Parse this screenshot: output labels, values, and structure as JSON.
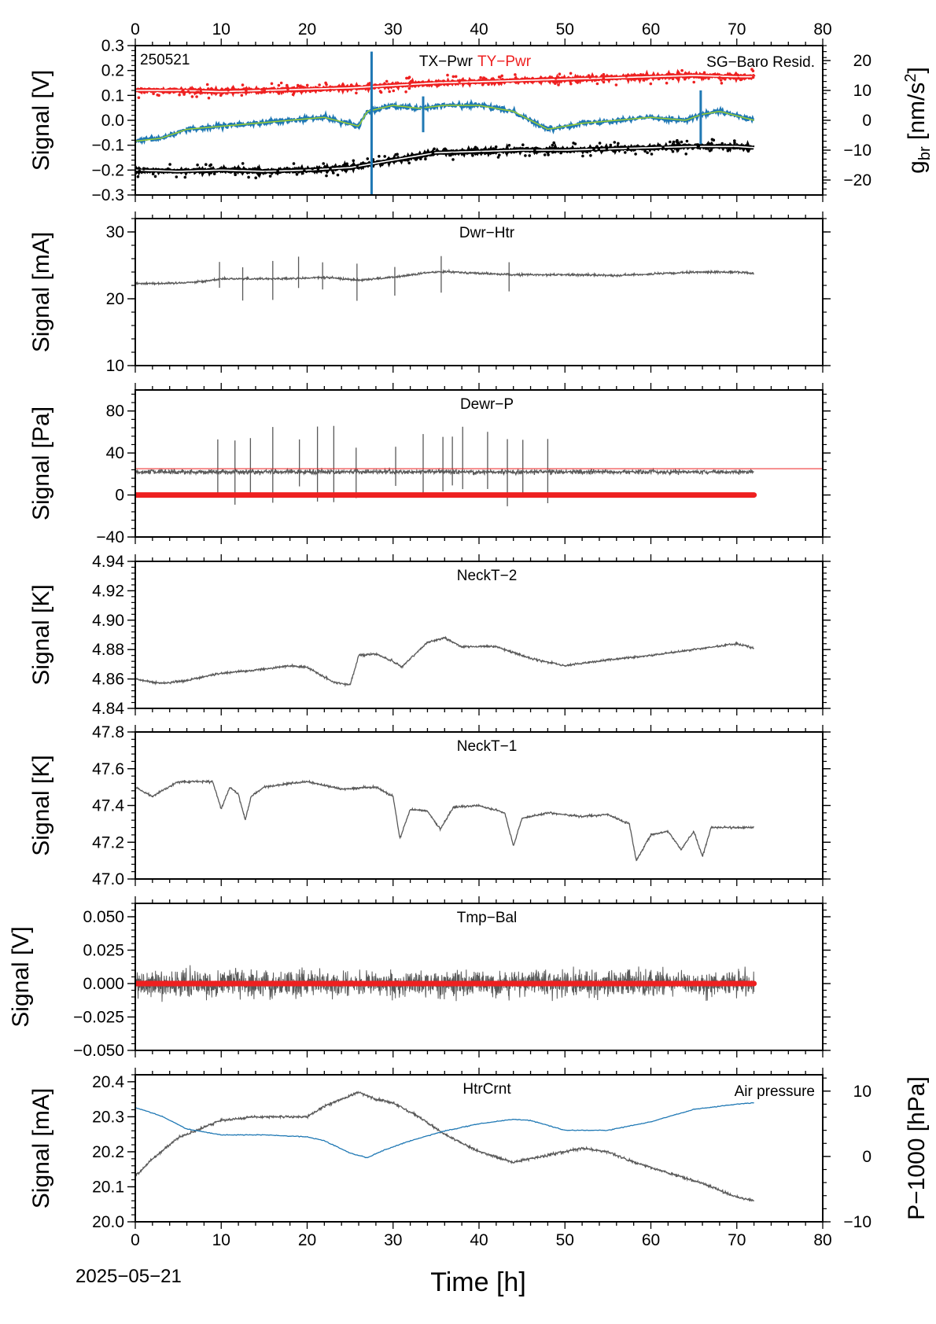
{
  "chart_data": [
    {
      "type": "line",
      "title": "TX−Pwr",
      "title2": "TY−Pwr",
      "annotation": "250521",
      "ylabel": "Signal [V]",
      "ylim": [
        -0.3,
        0.3
      ],
      "yticks": [
        0.3,
        0.2,
        0.1,
        0.0,
        -0.1,
        -0.2,
        -0.3
      ],
      "ytick_labels": [
        "0.3",
        "0.2",
        "0.1",
        "0.0",
        "−0.1",
        "−0.2",
        "−0.3"
      ],
      "right_axis": {
        "label_main": "g",
        "label_sub": "br",
        "label_unit": " [nm/s",
        "label_sup": "2",
        "label_end": "]",
        "ylim": [
          -25,
          25
        ],
        "yticks": [
          20,
          10,
          0,
          -10,
          -20
        ],
        "ytick_labels": [
          "20",
          "10",
          "0",
          "−10",
          "−20"
        ],
        "legend": "SG−Baro Resid.",
        "color": "#1f78b4"
      },
      "series": [
        {
          "name": "TY−Pwr",
          "color": "#ee2020",
          "x": [
            0,
            5,
            10,
            15,
            20,
            25,
            30,
            35,
            40,
            45,
            50,
            55,
            60,
            65,
            70,
            72
          ],
          "y": [
            0.12,
            0.12,
            0.115,
            0.12,
            0.125,
            0.13,
            0.14,
            0.15,
            0.155,
            0.16,
            0.165,
            0.17,
            0.175,
            0.18,
            0.175,
            0.175
          ]
        },
        {
          "name": "TX−Pwr",
          "color": "#000000",
          "x": [
            0,
            5,
            10,
            15,
            20,
            25,
            30,
            35,
            40,
            45,
            50,
            55,
            60,
            65,
            70,
            72
          ],
          "y": [
            -0.2,
            -0.205,
            -0.2,
            -0.205,
            -0.2,
            -0.19,
            -0.16,
            -0.13,
            -0.125,
            -0.12,
            -0.12,
            -0.115,
            -0.11,
            -0.105,
            -0.105,
            -0.11
          ]
        },
        {
          "name": "SG−Baro Resid.",
          "axis": "right",
          "color": "#1f78b4",
          "x": [
            0,
            3,
            6,
            10,
            14,
            18,
            22,
            26,
            27,
            30,
            33,
            36,
            40,
            44,
            48,
            52,
            56,
            60,
            64,
            66,
            68,
            72
          ],
          "y": [
            -7,
            -6,
            -3,
            -2,
            -1,
            0,
            1,
            -2,
            3,
            5,
            4,
            5,
            5,
            3,
            -3,
            -1,
            0,
            1,
            0,
            2,
            3,
            0
          ]
        }
      ]
    },
    {
      "type": "line",
      "title": "Dwr−Htr",
      "ylabel": "Signal [mA]",
      "ylim": [
        10,
        32
      ],
      "yticks": [
        30,
        20,
        10
      ],
      "ytick_labels": [
        "30",
        "20",
        "10"
      ],
      "series": [
        {
          "color": "#595959",
          "x": [
            0,
            4,
            8,
            10,
            14,
            18,
            22,
            26,
            30,
            34,
            36,
            40,
            44,
            50,
            56,
            60,
            66,
            70,
            72
          ],
          "y": [
            22.3,
            22.3,
            22.6,
            23.0,
            23.0,
            23.0,
            23.2,
            22.8,
            23.2,
            23.9,
            24.1,
            23.8,
            23.6,
            23.6,
            23.5,
            23.7,
            24.0,
            24.0,
            23.8
          ]
        }
      ]
    },
    {
      "type": "line",
      "title": "Dewr−P",
      "ylabel": "Signal [Pa]",
      "ylim": [
        -40,
        100
      ],
      "yticks": [
        80,
        40,
        0,
        -40
      ],
      "ytick_labels": [
        "80",
        "40",
        "0",
        "−40"
      ],
      "series": [
        {
          "color": "#595959",
          "x": [
            0,
            10,
            20,
            30,
            40,
            50,
            60,
            72
          ],
          "y": [
            22,
            22,
            22,
            22,
            22,
            22,
            22,
            22
          ]
        },
        {
          "color": "#ee2020",
          "x": [
            0,
            72
          ],
          "y": [
            0,
            0
          ]
        }
      ],
      "hline": {
        "y": 25,
        "color": "#ee2020"
      }
    },
    {
      "type": "line",
      "title": "NeckT−2",
      "ylabel": "Signal [K]",
      "ylim": [
        4.84,
        4.94
      ],
      "yticks": [
        4.94,
        4.92,
        4.9,
        4.88,
        4.86,
        4.84
      ],
      "ytick_labels": [
        "4.94",
        "4.92",
        "4.90",
        "4.88",
        "4.86",
        "4.84"
      ],
      "series": [
        {
          "color": "#595959",
          "x": [
            0,
            3,
            6,
            10,
            14,
            18,
            20,
            23,
            25,
            26,
            28,
            30,
            31,
            34,
            36,
            38,
            42,
            46,
            50,
            55,
            60,
            65,
            70,
            72
          ],
          "y": [
            4.86,
            4.857,
            4.859,
            4.864,
            4.866,
            4.869,
            4.868,
            4.858,
            4.856,
            4.876,
            4.877,
            4.872,
            4.868,
            4.885,
            4.888,
            4.882,
            4.882,
            4.874,
            4.869,
            4.873,
            4.876,
            4.88,
            4.884,
            4.881
          ]
        }
      ]
    },
    {
      "type": "line",
      "title": "NeckT−1",
      "ylabel": "Signal [K]",
      "ylim": [
        47.0,
        47.8
      ],
      "yticks": [
        47.8,
        47.6,
        47.4,
        47.2,
        47.0
      ],
      "ytick_labels": [
        "47.8",
        "47.6",
        "47.4",
        "47.2",
        "47.0"
      ],
      "series": [
        {
          "color": "#595959",
          "x": [
            0,
            2,
            5,
            9,
            10,
            11,
            12,
            12.8,
            13.5,
            15,
            18,
            20,
            24,
            28,
            30,
            30.8,
            32,
            34,
            35.5,
            37,
            40,
            43,
            44,
            45,
            48,
            52,
            55,
            57.5,
            58.3,
            60,
            62,
            63.5,
            65,
            66,
            67,
            70,
            72
          ],
          "y": [
            47.5,
            47.45,
            47.53,
            47.53,
            47.38,
            47.5,
            47.46,
            47.32,
            47.45,
            47.5,
            47.52,
            47.53,
            47.49,
            47.5,
            47.45,
            47.22,
            47.38,
            47.37,
            47.27,
            47.39,
            47.4,
            47.36,
            47.18,
            47.33,
            47.36,
            47.34,
            47.35,
            47.3,
            47.1,
            47.24,
            47.26,
            47.16,
            47.26,
            47.12,
            47.28,
            47.28,
            47.28
          ]
        }
      ]
    },
    {
      "type": "line",
      "title": "Tmp−Bal",
      "ylabel": "Signal [V]",
      "ylim": [
        -0.05,
        0.06
      ],
      "yticks": [
        0.05,
        0.025,
        0.0,
        -0.025,
        -0.05
      ],
      "ytick_labels": [
        "0.050",
        "0.025",
        "0.000",
        "−0.025",
        "−0.050"
      ],
      "series": [
        {
          "color": "#595959",
          "x": [
            0,
            72
          ],
          "y": [
            0,
            0
          ],
          "noise_amplitude": 0.02
        },
        {
          "color": "#ee2020",
          "x": [
            0,
            72
          ],
          "y": [
            0,
            0
          ]
        }
      ]
    },
    {
      "type": "line",
      "title": "HtrCrnt",
      "ylabel": "Signal [mA]",
      "xlabel": "Time [h]",
      "date_label": "2025−05−21",
      "ylim": [
        20.0,
        20.42
      ],
      "yticks": [
        20.4,
        20.3,
        20.2,
        20.1,
        20.0
      ],
      "ytick_labels": [
        "20.4",
        "20.3",
        "20.2",
        "20.1",
        "20.0"
      ],
      "right_axis": {
        "label": "P−1000 [hPa]",
        "ylim": [
          -10,
          12.5
        ],
        "yticks": [
          10,
          0,
          -10
        ],
        "ytick_labels": [
          "10",
          "0",
          "−10"
        ],
        "legend": "Air pressure",
        "color": "#1f78b4"
      },
      "series": [
        {
          "color": "#595959",
          "x": [
            0,
            2,
            5,
            8,
            10,
            14,
            18,
            20,
            22,
            25,
            26,
            28,
            30,
            33,
            36,
            40,
            44,
            48,
            52,
            55,
            58,
            62,
            66,
            70,
            72
          ],
          "y": [
            20.13,
            20.18,
            20.24,
            20.27,
            20.29,
            20.3,
            20.3,
            20.3,
            20.33,
            20.36,
            20.37,
            20.35,
            20.34,
            20.3,
            20.25,
            20.2,
            20.17,
            20.19,
            20.21,
            20.2,
            20.17,
            20.14,
            20.11,
            20.07,
            20.06
          ]
        },
        {
          "color": "#1f78b4",
          "axis": "right",
          "x": [
            0,
            3,
            6,
            10,
            15,
            20,
            22,
            25,
            27,
            29,
            32,
            36,
            40,
            44,
            46,
            50,
            55,
            60,
            65,
            70,
            72
          ],
          "y": [
            7.5,
            6.2,
            4.2,
            3.3,
            3.3,
            3.0,
            2.4,
            0.5,
            -0.2,
            1.0,
            2.4,
            3.9,
            5.0,
            5.7,
            5.5,
            4.0,
            4.0,
            5.3,
            7.2,
            8.0,
            8.2
          ]
        }
      ]
    }
  ],
  "x_axis": {
    "xlim": [
      0,
      80
    ],
    "ticks": [
      0,
      10,
      20,
      30,
      40,
      50,
      60,
      70,
      80
    ],
    "tick_labels": [
      "0",
      "10",
      "20",
      "30",
      "40",
      "50",
      "60",
      "70",
      "80"
    ]
  }
}
